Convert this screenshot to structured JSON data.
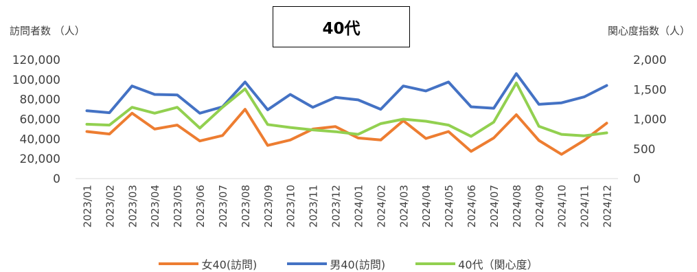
{
  "chart_data": {
    "type": "line",
    "title": "40代",
    "ylabel_left": "訪問者数 （人）",
    "ylabel_right": "関心度指数（人）",
    "ylim_left": [
      0,
      120000
    ],
    "yticks_left": [
      "0",
      "20,000",
      "40,000",
      "60,000",
      "80,000",
      "100,000",
      "120,000"
    ],
    "ylim_right": [
      0,
      2000
    ],
    "yticks_right": [
      "0",
      "500",
      "1,000",
      "1,500",
      "2,000"
    ],
    "categories": [
      "2023/01",
      "2023/02",
      "2023/03",
      "2023/04",
      "2023/05",
      "2023/06",
      "2023/07",
      "2023/08",
      "2023/09",
      "2023/10",
      "2023/11",
      "2023/12",
      "2024/01",
      "2024/02",
      "2024/03",
      "2024/04",
      "2024/05",
      "2024/06",
      "2024/07",
      "2024/08",
      "2024/09",
      "2024/10",
      "2024/11",
      "2024/12"
    ],
    "grid": false,
    "legend_position": "bottom",
    "series": [
      {
        "name": "女40(訪問)",
        "axis": "left",
        "color": "#ED7D31",
        "values": [
          47500,
          45000,
          66000,
          50000,
          54000,
          38000,
          43500,
          70000,
          33500,
          39000,
          50000,
          52500,
          41000,
          39000,
          58500,
          40500,
          47500,
          27500,
          41000,
          64500,
          38500,
          24500,
          38500,
          56000
        ]
      },
      {
        "name": "男40(訪問)",
        "axis": "left",
        "color": "#4472C4",
        "values": [
          68500,
          66500,
          93500,
          85000,
          84500,
          66000,
          72500,
          97500,
          69500,
          85000,
          72000,
          82000,
          79500,
          70000,
          93500,
          88500,
          97500,
          72500,
          71000,
          106000,
          75000,
          76500,
          82500,
          94000
        ]
      },
      {
        "name": "40代（関心度）",
        "axis": "right",
        "color": "#92D050",
        "values": [
          915,
          900,
          1200,
          1100,
          1200,
          850,
          1200,
          1510,
          910,
          860,
          820,
          790,
          745,
          925,
          1000,
          965,
          900,
          710,
          950,
          1610,
          880,
          745,
          720,
          770
        ]
      }
    ]
  }
}
